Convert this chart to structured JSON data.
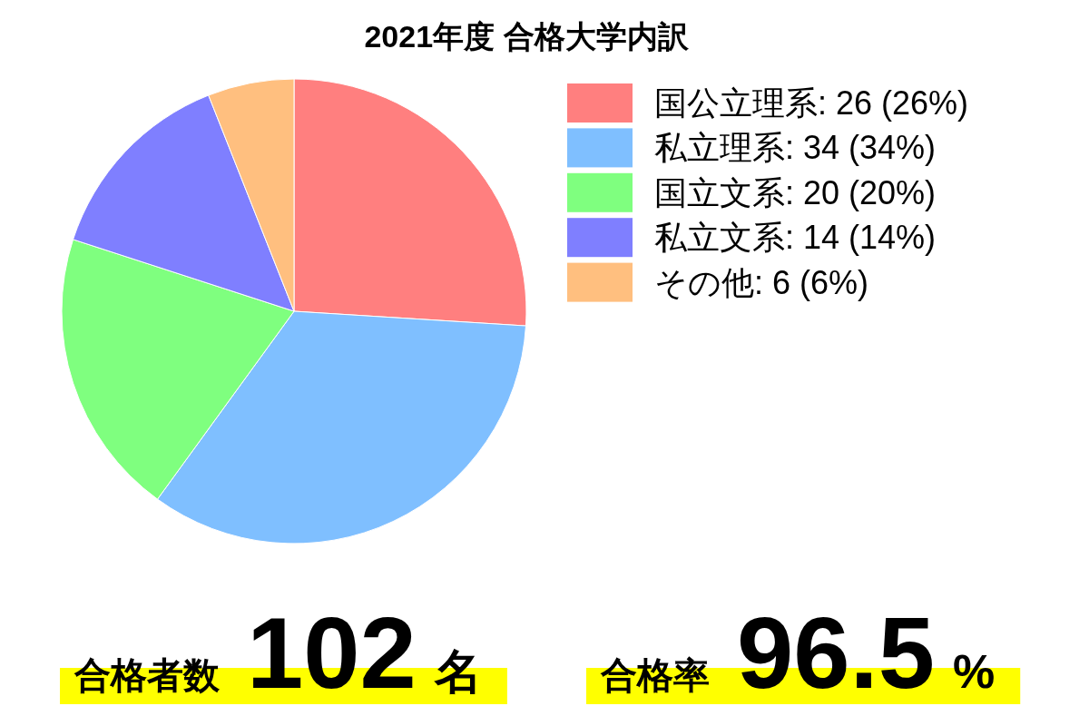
{
  "chart_data": {
    "type": "pie",
    "title": "2021年度 合格大学内訳",
    "categories": [
      "国公立理系",
      "私立理系",
      "国立文系",
      "私立文系",
      "その他"
    ],
    "values": [
      26,
      34,
      20,
      14,
      6
    ],
    "value_labels": [
      "26 (26%)",
      "34 (34%)",
      "20 (20%)",
      "14 (14%)",
      "6 (6%)"
    ],
    "colors": [
      "#ff7f7f",
      "#7fbfff",
      "#7fff7f",
      "#7f7fff",
      "#ffbf7f"
    ],
    "legend": "right",
    "annotations": [
      "合格者数 102 名",
      "合格率 96.5 %"
    ]
  }
}
